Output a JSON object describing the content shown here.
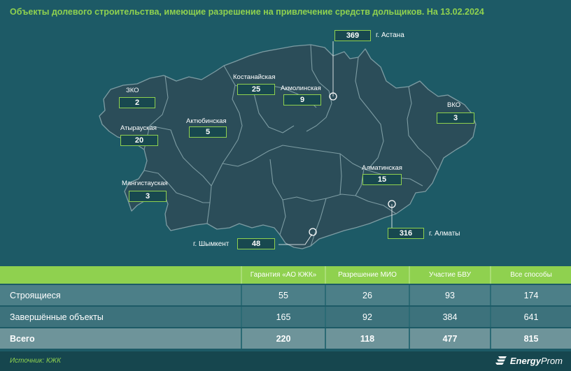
{
  "title": "Объекты долевого строительства, имеющие разрешение на привлечение средств дольщиков. На 13.02.2024",
  "colors": {
    "accent": "#8fd14f",
    "background": "#1d5a66",
    "land": "#2b4d59",
    "land_stroke": "#7d9ca3",
    "row_alt": "#6e949a"
  },
  "map": {
    "regions": [
      {
        "id": "zko",
        "label": "ЗКО",
        "value": "2"
      },
      {
        "id": "atyrau",
        "label": "Атырауская",
        "value": "20"
      },
      {
        "id": "mangistau",
        "label": "Мангистауская",
        "value": "3"
      },
      {
        "id": "aktobe",
        "label": "Актюбинская",
        "value": "5"
      },
      {
        "id": "kostanay",
        "label": "Костанайская",
        "value": "25"
      },
      {
        "id": "akmola",
        "label": "Акмолинская",
        "value": "9"
      },
      {
        "id": "vko",
        "label": "ВКО",
        "value": "3"
      },
      {
        "id": "almaty-obl",
        "label": "Алматинская",
        "value": "15"
      }
    ],
    "cities": [
      {
        "id": "astana",
        "label": "г. Астана",
        "value": "369"
      },
      {
        "id": "almaty",
        "label": "г. Алматы",
        "value": "316"
      },
      {
        "id": "shymkent",
        "label": "г. Шымкент",
        "value": "48"
      }
    ]
  },
  "table": {
    "headers": [
      "",
      "Гарантия «АО КЖК»",
      "Разрешение МИО",
      "Участие БВУ",
      "Все способы"
    ],
    "rows": [
      {
        "label": "Строящиеся",
        "values": [
          "55",
          "26",
          "93",
          "174"
        ]
      },
      {
        "label": "Завершённые объекты",
        "values": [
          "165",
          "92",
          "384",
          "641"
        ]
      },
      {
        "label": "Всего",
        "values": [
          "220",
          "118",
          "477",
          "815"
        ]
      }
    ]
  },
  "footer": {
    "source": "Источник: КЖК",
    "logo_icon": "energyprom-logo-icon",
    "logo_bold": "Energy",
    "logo_regular": "Prom"
  }
}
